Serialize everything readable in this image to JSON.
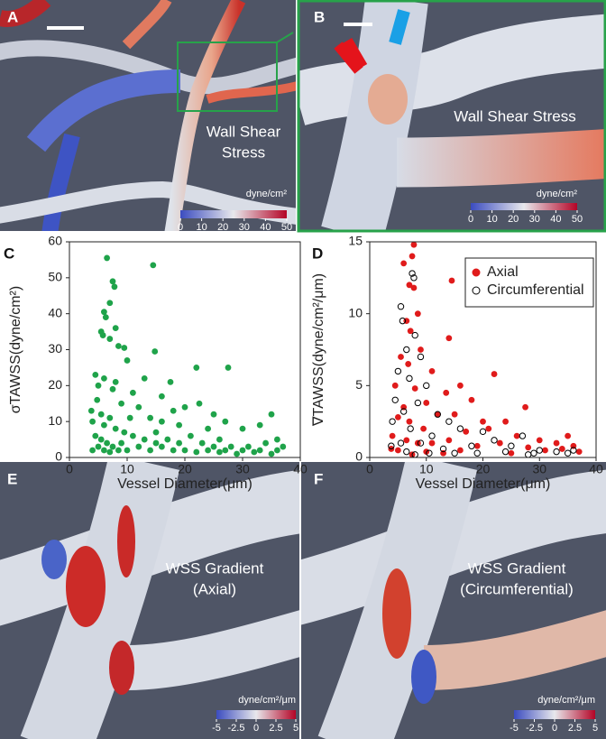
{
  "panels": [
    {
      "label": "A",
      "caption": [
        "Wall Shear",
        "Stress"
      ],
      "colorbar": {
        "unit": "dyne/cm²",
        "lim": [
          0,
          50
        ],
        "ticks": [
          0,
          10,
          20,
          30,
          40,
          50
        ]
      }
    },
    {
      "label": "B",
      "caption": [
        "Wall Shear Stress"
      ],
      "colorbar": {
        "unit": "dyne/cm²",
        "lim": [
          0,
          50
        ],
        "ticks": [
          0,
          10,
          20,
          30,
          40,
          50
        ]
      }
    },
    {
      "label": "E",
      "caption": [
        "WSS Gradient",
        "(Axial)"
      ],
      "colorbar": {
        "unit": "dyne/cm²/μm",
        "lim": [
          -5,
          5
        ],
        "ticks": [
          -5,
          -2.5,
          0,
          2.5,
          5
        ]
      }
    },
    {
      "label": "F",
      "caption": [
        "WSS Gradient",
        "(Circumferential)"
      ],
      "colorbar": {
        "unit": "dyne/cm²/μm",
        "lim": [
          -5,
          5
        ],
        "ticks": [
          -5,
          -2.5,
          0,
          2.5,
          5
        ]
      }
    }
  ],
  "chart_data": [
    {
      "type": "scatter",
      "panel_label": "C",
      "xlabel": "Vessel Diameter(μm)",
      "ylabel": "σTAWSS(dyne/cm²)",
      "xlim": [
        0,
        40
      ],
      "xticks": [
        0,
        10,
        20,
        30,
        40
      ],
      "ylim": [
        0,
        60
      ],
      "yticks": [
        0,
        10,
        20,
        30,
        40,
        50,
        60
      ],
      "series": [
        {
          "name": null,
          "color": "#1fa34a",
          "marker": "filled",
          "x": [
            6.5,
            14.5,
            7.5,
            7.8,
            7,
            6,
            6.3,
            8,
            5.5,
            5.8,
            7,
            8.5,
            9.5,
            14.8,
            10,
            22,
            27.5,
            4.5,
            6,
            8,
            13,
            17.5,
            5,
            7.5,
            11,
            16,
            4.8,
            9,
            12,
            20,
            22.5,
            25,
            18,
            35,
            3.8,
            5.5,
            7,
            10.5,
            14,
            16,
            19,
            24,
            27,
            30,
            33,
            4,
            6,
            8,
            9.5,
            11,
            13,
            15,
            17,
            21,
            23,
            26,
            28,
            31,
            34,
            36,
            37,
            4.5,
            5.5,
            6.5,
            7.5,
            8.5,
            10,
            12,
            14,
            16,
            18,
            20,
            22,
            24,
            26,
            29,
            30,
            32,
            33,
            35,
            5,
            6,
            7,
            9,
            15,
            19,
            25,
            27,
            36,
            4
          ],
          "values": [
            55.5,
            53.5,
            49,
            47.5,
            43,
            40.5,
            39,
            36,
            35,
            34,
            33,
            31,
            30.5,
            29.5,
            27,
            25,
            25,
            23,
            22,
            21,
            22,
            21,
            20,
            19,
            18,
            17,
            16,
            15,
            14,
            14,
            15,
            12,
            13,
            12,
            13,
            12,
            11,
            11,
            11,
            10,
            9,
            8,
            10,
            8,
            9,
            10,
            9,
            8,
            7,
            6,
            5,
            7,
            5,
            6,
            4,
            5,
            3,
            3,
            4,
            5,
            3,
            6,
            5,
            4,
            3,
            2,
            2,
            3,
            2,
            3,
            2,
            2,
            1.5,
            2,
            1.5,
            1,
            2,
            1.5,
            2,
            1,
            3,
            2,
            1.5,
            4,
            4,
            4,
            3,
            2,
            2,
            2
          ]
        }
      ]
    },
    {
      "type": "scatter",
      "panel_label": "D",
      "xlabel": "Vessel Diameter(μm)",
      "ylabel": "∇TAWSS(dyne/cm²/μm)",
      "xlim": [
        0,
        40
      ],
      "xticks": [
        0,
        10,
        20,
        30,
        40
      ],
      "ylim": [
        0,
        15
      ],
      "yticks": [
        0,
        5,
        10,
        15
      ],
      "legend": "upper right",
      "series": [
        {
          "name": "Axial",
          "color": "#e01b1b",
          "marker": "filled",
          "x": [
            7.8,
            7.5,
            6,
            7,
            14.5,
            7.8,
            8.5,
            6.5,
            7.2,
            14,
            9,
            5.5,
            6.8,
            11,
            22,
            16,
            4.5,
            8,
            13.5,
            18,
            27.5,
            10,
            6,
            12,
            15,
            20,
            24,
            5,
            7,
            9.5,
            17,
            21,
            26,
            30,
            33,
            35,
            36,
            4,
            6.5,
            8.5,
            11,
            14,
            19,
            23,
            28,
            31,
            34,
            37,
            5,
            10,
            16,
            25,
            3.8,
            13,
            7.5
          ],
          "values": [
            14.8,
            14,
            13.5,
            12,
            12.3,
            11.8,
            10,
            9.5,
            8.8,
            8.3,
            7.5,
            7,
            6.5,
            6,
            5.8,
            5,
            5,
            4.8,
            4.5,
            4,
            3.5,
            3.8,
            3.5,
            3,
            3,
            2.5,
            2.5,
            2.8,
            2.5,
            2,
            1.8,
            2,
            1.5,
            1.2,
            1,
            1.5,
            0.8,
            1.5,
            1.2,
            1,
            1,
            1.2,
            0.8,
            1,
            0.7,
            0.5,
            0.6,
            0.4,
            0.5,
            0.4,
            0.5,
            0.3,
            0.6,
            0.3,
            0.2
          ]
        },
        {
          "name": "Circumferential",
          "color": "#000000",
          "marker": "open",
          "x": [
            7.5,
            7.8,
            5.5,
            5.8,
            8,
            6.5,
            9,
            5,
            7,
            10,
            4.5,
            8.5,
            6,
            12,
            14,
            4,
            16,
            20,
            7.2,
            11,
            22,
            27,
            9,
            5.5,
            18,
            25,
            30,
            33,
            36,
            3.8,
            13,
            15,
            24,
            29,
            35,
            6.5,
            8,
            10.5,
            19,
            28
          ],
          "values": [
            12.8,
            12.5,
            10.5,
            9.5,
            8.5,
            7.5,
            7,
            6,
            5.5,
            5,
            4,
            3.8,
            3.2,
            3,
            2.5,
            2.5,
            2,
            1.8,
            2,
            1.5,
            1.2,
            1.5,
            1,
            1,
            0.8,
            0.8,
            0.5,
            0.4,
            0.5,
            0.8,
            0.6,
            0.3,
            0.4,
            0.3,
            0.3,
            0.4,
            0.2,
            0.3,
            0.3,
            0.2
          ]
        }
      ]
    }
  ]
}
